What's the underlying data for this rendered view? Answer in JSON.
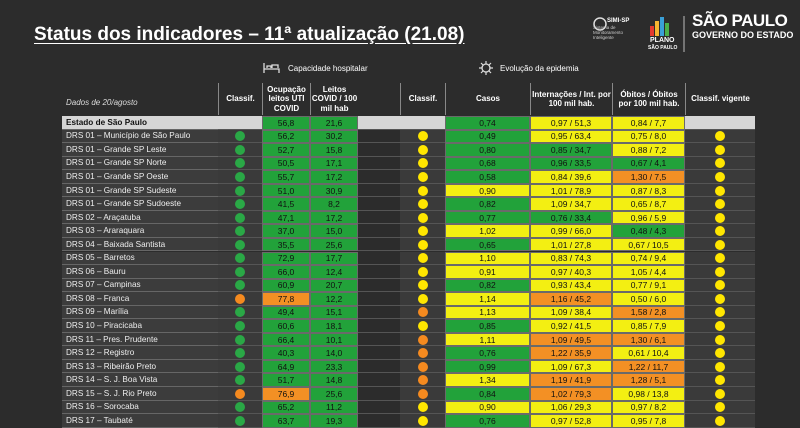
{
  "header": {
    "title": "Status dos indicadores – 11ª atualização (21.08)",
    "logos": [
      "SIMI-SP",
      "Sistema de Monitoramento Inteligente",
      "PLANO",
      "SÃO PAULO",
      "SÃO PAULO",
      "GOVERNO DO ESTADO"
    ]
  },
  "table": {
    "date_note": "Dados de 20/agosto",
    "groups": [
      "Capacidade hospitalar",
      "Evolução da epidemia"
    ],
    "columns": [
      "Classif.",
      "Ocupação leitos UTI COVID",
      "Leitos COVID / 100 mil hab",
      "Classif.",
      "Casos",
      "Internações / Int. por 100 mil hab.",
      "Óbitos / Óbitos por 100 mil hab.",
      "Classif. vigente"
    ],
    "rows": [
      {
        "name": "Estado de São Paulo",
        "cells": [
          "56,8",
          "21,6",
          "0,74",
          "0,97 / 51,3",
          "0,84 / 7,7"
        ],
        "fills": [
          "#22a23a",
          "#22a23a",
          "#22a23a",
          "#f3ef12",
          "#f3ef12"
        ],
        "dots": [
          null,
          null,
          null
        ]
      },
      {
        "name": "DRS 01 – Município de São Paulo",
        "cells": [
          "56,2",
          "30,2",
          "0,49",
          "0,95 / 63,4",
          "0,75 / 8,0"
        ],
        "fills": [
          "#22a23a",
          "#22a23a",
          "#22a23a",
          "#f3ef12",
          "#f3ef12"
        ],
        "dots": [
          "#2aa846",
          "#ffe600",
          "#ffe600"
        ]
      },
      {
        "name": "DRS 01 – Grande SP Leste",
        "cells": [
          "52,7",
          "15,8",
          "0,80",
          "0,85 / 34,7",
          "0,88 / 7,2"
        ],
        "fills": [
          "#22a23a",
          "#22a23a",
          "#22a23a",
          "#22a23a",
          "#f3ef12"
        ],
        "dots": [
          "#2aa846",
          "#ffe600",
          "#ffe600"
        ]
      },
      {
        "name": "DRS 01 – Grande SP Norte",
        "cells": [
          "50,5",
          "17,1",
          "0,68",
          "0,96 / 33,5",
          "0,67 / 4,1"
        ],
        "fills": [
          "#22a23a",
          "#22a23a",
          "#22a23a",
          "#22a23a",
          "#22a23a"
        ],
        "dots": [
          "#2aa846",
          "#ffe600",
          "#ffe600"
        ]
      },
      {
        "name": "DRS 01 – Grande SP Oeste",
        "cells": [
          "55,7",
          "17,2",
          "0,58",
          "0,84 / 39,6",
          "1,30 / 7,5"
        ],
        "fills": [
          "#22a23a",
          "#22a23a",
          "#22a23a",
          "#f3ef12",
          "#f39024"
        ],
        "dots": [
          "#2aa846",
          "#ffe600",
          "#ffe600"
        ]
      },
      {
        "name": "DRS 01 – Grande SP Sudeste",
        "cells": [
          "51,0",
          "30,9",
          "0,90",
          "1,01 / 78,9",
          "0,87 / 8,3"
        ],
        "fills": [
          "#22a23a",
          "#22a23a",
          "#f3ef12",
          "#f3ef12",
          "#f3ef12"
        ],
        "dots": [
          "#2aa846",
          "#ffe600",
          "#ffe600"
        ]
      },
      {
        "name": "DRS 01 – Grande SP Sudoeste",
        "cells": [
          "41,5",
          "8,2",
          "0,82",
          "1,09 / 34,7",
          "0,65 / 8,7"
        ],
        "fills": [
          "#22a23a",
          "#22a23a",
          "#22a23a",
          "#f3ef12",
          "#f3ef12"
        ],
        "dots": [
          "#2aa846",
          "#ffe600",
          "#ffe600"
        ]
      },
      {
        "name": "DRS 02 – Araçatuba",
        "cells": [
          "47,1",
          "17,2",
          "0,77",
          "0,76 / 33,4",
          "0,96 / 5,9"
        ],
        "fills": [
          "#22a23a",
          "#22a23a",
          "#22a23a",
          "#22a23a",
          "#f3ef12"
        ],
        "dots": [
          "#2aa846",
          "#ffe600",
          "#ffe600"
        ]
      },
      {
        "name": "DRS 03 – Araraquara",
        "cells": [
          "37,0",
          "15,0",
          "1,02",
          "0,99 / 66,0",
          "0,48 / 4,3"
        ],
        "fills": [
          "#22a23a",
          "#22a23a",
          "#f3ef12",
          "#f3ef12",
          "#22a23a"
        ],
        "dots": [
          "#2aa846",
          "#ffe600",
          "#ffe600"
        ]
      },
      {
        "name": "DRS 04 – Baixada Santista",
        "cells": [
          "35,5",
          "25,6",
          "0,65",
          "1,01 / 27,8",
          "0,67 / 10,5"
        ],
        "fills": [
          "#22a23a",
          "#22a23a",
          "#22a23a",
          "#f3ef12",
          "#f3ef12"
        ],
        "dots": [
          "#2aa846",
          "#ffe600",
          "#ffe600"
        ]
      },
      {
        "name": "DRS 05 – Barretos",
        "cells": [
          "72,9",
          "17,7",
          "1,10",
          "0,83 / 74,3",
          "0,74 / 9,4"
        ],
        "fills": [
          "#22a23a",
          "#22a23a",
          "#f3ef12",
          "#f3ef12",
          "#f3ef12"
        ],
        "dots": [
          "#2aa846",
          "#ffe600",
          "#ffe600"
        ]
      },
      {
        "name": "DRS 06 – Bauru",
        "cells": [
          "66,0",
          "12,4",
          "0,91",
          "0,97 / 40,3",
          "1,05 / 4,4"
        ],
        "fills": [
          "#22a23a",
          "#22a23a",
          "#f3ef12",
          "#f3ef12",
          "#f3ef12"
        ],
        "dots": [
          "#2aa846",
          "#ffe600",
          "#ffe600"
        ]
      },
      {
        "name": "DRS 07 – Campinas",
        "cells": [
          "60,9",
          "20,7",
          "0,82",
          "0,93 / 43,4",
          "0,77 / 9,1"
        ],
        "fills": [
          "#22a23a",
          "#22a23a",
          "#22a23a",
          "#f3ef12",
          "#f3ef12"
        ],
        "dots": [
          "#2aa846",
          "#ffe600",
          "#ffe600"
        ]
      },
      {
        "name": "DRS 08 – Franca",
        "cells": [
          "77,8",
          "12,2",
          "1,14",
          "1,16 / 45,2",
          "0,50 / 6,0"
        ],
        "fills": [
          "#f39024",
          "#22a23a",
          "#f3ef12",
          "#f39024",
          "#f3ef12"
        ],
        "dots": [
          "#f58a1f",
          "#ffe600",
          "#ffe600"
        ]
      },
      {
        "name": "DRS 09 – Marília",
        "cells": [
          "49,4",
          "15,1",
          "1,13",
          "1,09 / 38,4",
          "1,58 / 2,8"
        ],
        "fills": [
          "#22a23a",
          "#22a23a",
          "#f3ef12",
          "#f3ef12",
          "#f39024"
        ],
        "dots": [
          "#2aa846",
          "#f58a1f",
          "#ffe600"
        ]
      },
      {
        "name": "DRS 10 – Piracicaba",
        "cells": [
          "60,6",
          "18,1",
          "0,85",
          "0,92 / 41,5",
          "0,85 / 7,9"
        ],
        "fills": [
          "#22a23a",
          "#22a23a",
          "#22a23a",
          "#f3ef12",
          "#f3ef12"
        ],
        "dots": [
          "#2aa846",
          "#ffe600",
          "#ffe600"
        ]
      },
      {
        "name": "DRS 11 – Pres. Prudente",
        "cells": [
          "66,4",
          "10,1",
          "1,11",
          "1,09 / 49,5",
          "1,30 / 6,1"
        ],
        "fills": [
          "#22a23a",
          "#22a23a",
          "#f3ef12",
          "#f39024",
          "#f39024"
        ],
        "dots": [
          "#2aa846",
          "#f58a1f",
          "#ffe600"
        ]
      },
      {
        "name": "DRS 12 – Registro",
        "cells": [
          "40,3",
          "14,0",
          "0,76",
          "1,22 / 35,9",
          "0,61 / 10,4"
        ],
        "fills": [
          "#22a23a",
          "#22a23a",
          "#22a23a",
          "#f39024",
          "#f3ef12"
        ],
        "dots": [
          "#2aa846",
          "#f58a1f",
          "#ffe600"
        ]
      },
      {
        "name": "DRS 13 – Ribeirão Preto",
        "cells": [
          "64,9",
          "23,3",
          "0,99",
          "1,09 / 67,3",
          "1,22 / 11,7"
        ],
        "fills": [
          "#22a23a",
          "#22a23a",
          "#22a23a",
          "#f3ef12",
          "#f39024"
        ],
        "dots": [
          "#2aa846",
          "#f58a1f",
          "#ffe600"
        ]
      },
      {
        "name": "DRS 14 – S. J. Boa Vista",
        "cells": [
          "51,7",
          "14,8",
          "1,34",
          "1,19 / 41,9",
          "1,28 / 5,1"
        ],
        "fills": [
          "#22a23a",
          "#22a23a",
          "#f3ef12",
          "#f39024",
          "#f39024"
        ],
        "dots": [
          "#2aa846",
          "#f58a1f",
          "#ffe600"
        ]
      },
      {
        "name": "DRS 15 – S. J. Rio Preto",
        "cells": [
          "76,9",
          "25,6",
          "0,84",
          "1,02 / 79,3",
          "0,98 / 13,8"
        ],
        "fills": [
          "#f39024",
          "#22a23a",
          "#22a23a",
          "#f39024",
          "#f3ef12"
        ],
        "dots": [
          "#f58a1f",
          "#f58a1f",
          "#ffe600"
        ]
      },
      {
        "name": "DRS 16 – Sorocaba",
        "cells": [
          "65,2",
          "11,2",
          "0,90",
          "1,06 / 29,3",
          "0,97 / 8,2"
        ],
        "fills": [
          "#22a23a",
          "#22a23a",
          "#f3ef12",
          "#f3ef12",
          "#f3ef12"
        ],
        "dots": [
          "#2aa846",
          "#ffe600",
          "#ffe600"
        ]
      },
      {
        "name": "DRS 17 – Taubaté",
        "cells": [
          "63,7",
          "19,3",
          "0,76",
          "0,97 / 52,8",
          "0,95 / 7,8"
        ],
        "fills": [
          "#22a23a",
          "#22a23a",
          "#22a23a",
          "#f3ef12",
          "#f3ef12"
        ],
        "dots": [
          "#2aa846",
          "#ffe600",
          "#ffe600"
        ]
      }
    ]
  }
}
